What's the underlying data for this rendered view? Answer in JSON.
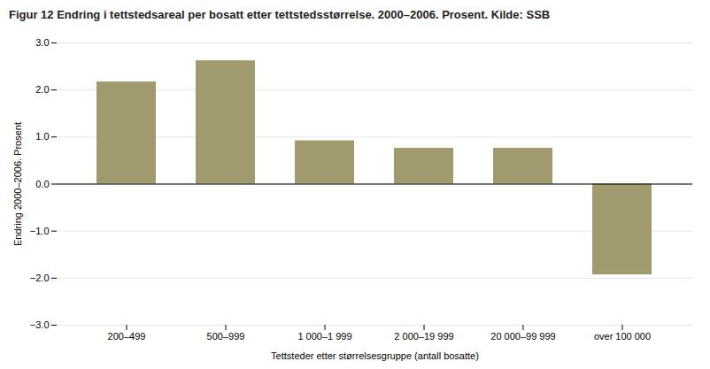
{
  "chart_data": {
    "type": "bar",
    "title": "Figur 12 Endring i tettstedsareal per bosatt etter tettstedsstørrelse. 2000–2006. Prosent. Kilde: SSB",
    "categories": [
      "200–499",
      "500–999",
      "1 000–1 999",
      "2 000–19 999",
      "20 000–99 999",
      "over 100 000"
    ],
    "values": [
      2.17,
      2.62,
      0.92,
      0.76,
      0.76,
      -1.93
    ],
    "color": "#a09a6e",
    "xlabel": "Tettsteder etter størrelsesgruppe (antall bosatte)",
    "ylabel": "Endring 2000–2006. Prosent",
    "ylim": [
      -3,
      3
    ],
    "yticks": [
      -3,
      -2,
      -1,
      0,
      1,
      2,
      3
    ],
    "grid": true
  }
}
